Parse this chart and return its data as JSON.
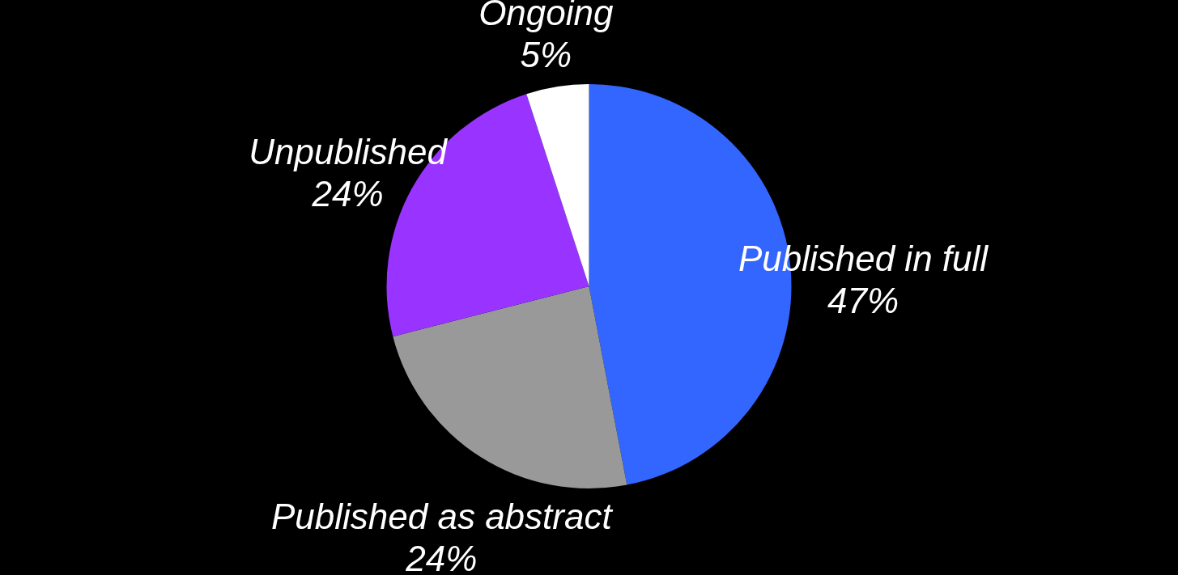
{
  "chart_data": {
    "type": "pie",
    "categories": [
      "Published in full",
      "Published as abstract",
      "Unpublished",
      "Ongoing"
    ],
    "values": [
      47,
      24,
      24,
      5
    ],
    "colors": [
      "#3366ff",
      "#999999",
      "#9933ff",
      "#ffffff"
    ],
    "value_labels": [
      "47%",
      "24%",
      "24%",
      "5%"
    ],
    "legend": false
  }
}
